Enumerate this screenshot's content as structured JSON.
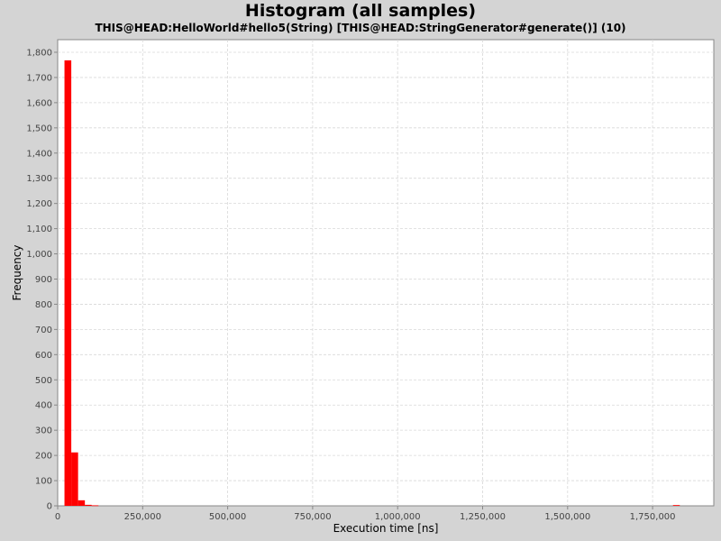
{
  "chart_data": {
    "type": "bar",
    "title": "Histogram (all samples)",
    "subtitle": "THIS@HEAD:HelloWorld#hello5(String) [THIS@HEAD:StringGenerator#generate()] (10)",
    "xlabel": "Execution time [ns]",
    "ylabel": "Frequency",
    "xlim": [
      0,
      1930000
    ],
    "ylim": [
      0,
      1850
    ],
    "grid": true,
    "bar_color": "#ff0000",
    "x_ticks": [
      {
        "value": 0,
        "label": "0"
      },
      {
        "value": 250000,
        "label": "250,000"
      },
      {
        "value": 500000,
        "label": "500,000"
      },
      {
        "value": 750000,
        "label": "750,000"
      },
      {
        "value": 1000000,
        "label": "1,000,000"
      },
      {
        "value": 1250000,
        "label": "1,250,000"
      },
      {
        "value": 1500000,
        "label": "1,500,000"
      },
      {
        "value": 1750000,
        "label": "1,750,000"
      }
    ],
    "y_ticks": [
      {
        "value": 0,
        "label": "0"
      },
      {
        "value": 100,
        "label": "100"
      },
      {
        "value": 200,
        "label": "200"
      },
      {
        "value": 300,
        "label": "300"
      },
      {
        "value": 400,
        "label": "400"
      },
      {
        "value": 500,
        "label": "500"
      },
      {
        "value": 600,
        "label": "600"
      },
      {
        "value": 700,
        "label": "700"
      },
      {
        "value": 800,
        "label": "800"
      },
      {
        "value": 900,
        "label": "900"
      },
      {
        "value": 1000,
        "label": "1,000"
      },
      {
        "value": 1100,
        "label": "1,100"
      },
      {
        "value": 1200,
        "label": "1,200"
      },
      {
        "value": 1300,
        "label": "1,300"
      },
      {
        "value": 1400,
        "label": "1,400"
      },
      {
        "value": 1500,
        "label": "1,500"
      },
      {
        "value": 1600,
        "label": "1,600"
      },
      {
        "value": 1700,
        "label": "1,700"
      },
      {
        "value": 1800,
        "label": "1,800"
      }
    ],
    "bins": [
      {
        "start": 20000,
        "end": 40000,
        "count": 1768
      },
      {
        "start": 40000,
        "end": 60000,
        "count": 212
      },
      {
        "start": 60000,
        "end": 80000,
        "count": 22
      },
      {
        "start": 80000,
        "end": 100000,
        "count": 4
      },
      {
        "start": 100000,
        "end": 120000,
        "count": 2
      },
      {
        "start": 1810000,
        "end": 1830000,
        "count": 3
      }
    ]
  }
}
